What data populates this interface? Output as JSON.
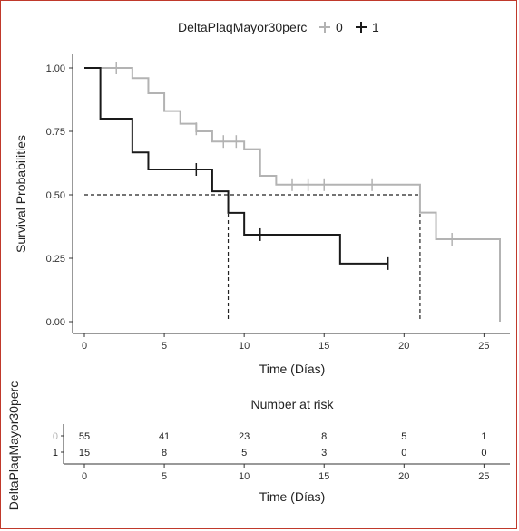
{
  "chart_data": [
    {
      "type": "line",
      "subtype": "kaplan-meier-step",
      "legend": {
        "title": "DeltaPlaqMayor30perc",
        "placement": "top",
        "entries": [
          {
            "label": "0",
            "color": "#b3b3b3"
          },
          {
            "label": "1",
            "color": "#1a1a1a"
          }
        ]
      },
      "xlabel": "Time (Días)",
      "ylabel": "Survival Probabilities",
      "xlim": [
        0,
        26
      ],
      "ylim": [
        0,
        1
      ],
      "xticks": [
        "0",
        "5",
        "10",
        "15",
        "20",
        "25"
      ],
      "yticks": [
        "0.00",
        "0.25",
        "0.50",
        "0.75",
        "1.00"
      ],
      "xtick_values": [
        0,
        5,
        10,
        15,
        20,
        25
      ],
      "ytick_values": [
        0,
        0.25,
        0.5,
        0.75,
        1
      ],
      "grid": false,
      "series": [
        {
          "name": "0",
          "color": "#b3b3b3",
          "steps": [
            [
              0,
              1.0
            ],
            [
              3,
              0.96
            ],
            [
              4,
              0.9
            ],
            [
              5,
              0.83
            ],
            [
              6,
              0.78
            ],
            [
              7,
              0.75
            ],
            [
              8,
              0.71
            ],
            [
              10,
              0.68
            ],
            [
              11,
              0.575
            ],
            [
              12,
              0.54
            ],
            [
              21,
              0.43
            ],
            [
              22,
              0.325
            ],
            [
              26,
              0.0
            ]
          ],
          "x_end": 26,
          "censored": [
            [
              2,
              1.0
            ],
            [
              7,
              0.76
            ],
            [
              8.7,
              0.71
            ],
            [
              9.5,
              0.71
            ],
            [
              13,
              0.54
            ],
            [
              14,
              0.54
            ],
            [
              15,
              0.54
            ],
            [
              18,
              0.54
            ],
            [
              23,
              0.325
            ]
          ]
        },
        {
          "name": "1",
          "color": "#1a1a1a",
          "steps": [
            [
              1,
              1.0
            ],
            [
              1,
              0.8
            ],
            [
              3,
              0.667
            ],
            [
              4,
              0.6
            ],
            [
              8,
              0.514
            ],
            [
              9,
              0.429
            ],
            [
              10,
              0.343
            ],
            [
              16,
              0.229
            ]
          ],
          "x_start": 0,
          "x_end": 19,
          "censored": [
            [
              7,
              0.6
            ],
            [
              11,
              0.343
            ],
            [
              19,
              0.229
            ]
          ]
        }
      ],
      "median_line": {
        "y": 0.5,
        "x_from": 0,
        "x_to": 21,
        "drops": [
          9,
          21
        ]
      }
    },
    {
      "type": "table",
      "title": "Number at risk",
      "ylabel": "DeltaPlaqMayor30perc",
      "xlabel": "Time (Días)",
      "xlim": [
        0,
        26
      ],
      "xticks": [
        "0",
        "5",
        "10",
        "15",
        "20",
        "25"
      ],
      "xtick_values": [
        0,
        5,
        10,
        15,
        20,
        25
      ],
      "rows": [
        {
          "group": "0",
          "color": "#b3b3b3",
          "values": [
            "55",
            "41",
            "23",
            "8",
            "5",
            "1"
          ]
        },
        {
          "group": "1",
          "color": "#1a1a1a",
          "values": [
            "15",
            "8",
            "5",
            "3",
            "0",
            "0"
          ]
        }
      ]
    }
  ]
}
